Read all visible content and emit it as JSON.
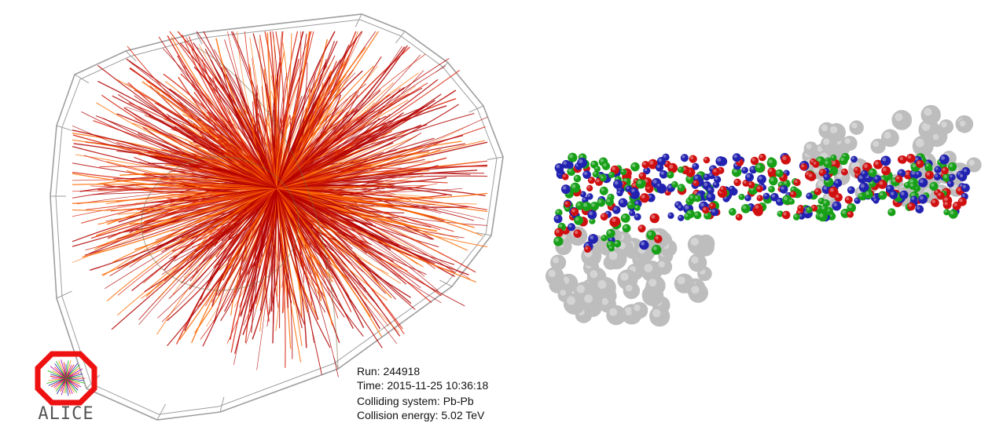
{
  "event_display": {
    "colors": {
      "track_dark": "#b30000",
      "track_mid": "#d8210a",
      "track_light": "#ff6a00",
      "detector_wire": "#9e9e9e",
      "nucleon_red": "#d01010",
      "nucleon_green": "#18a018",
      "nucleon_blue": "#2222b0",
      "spectator_gray": "#bdbdbd"
    }
  },
  "run_info": {
    "run": "Run: 244918",
    "time": "Time: 2015-11-25 10:36:18",
    "system": "Colliding system: Pb-Pb",
    "energy": "Collision energy: 5.02 TeV"
  },
  "logo": {
    "text": "ALICE"
  }
}
